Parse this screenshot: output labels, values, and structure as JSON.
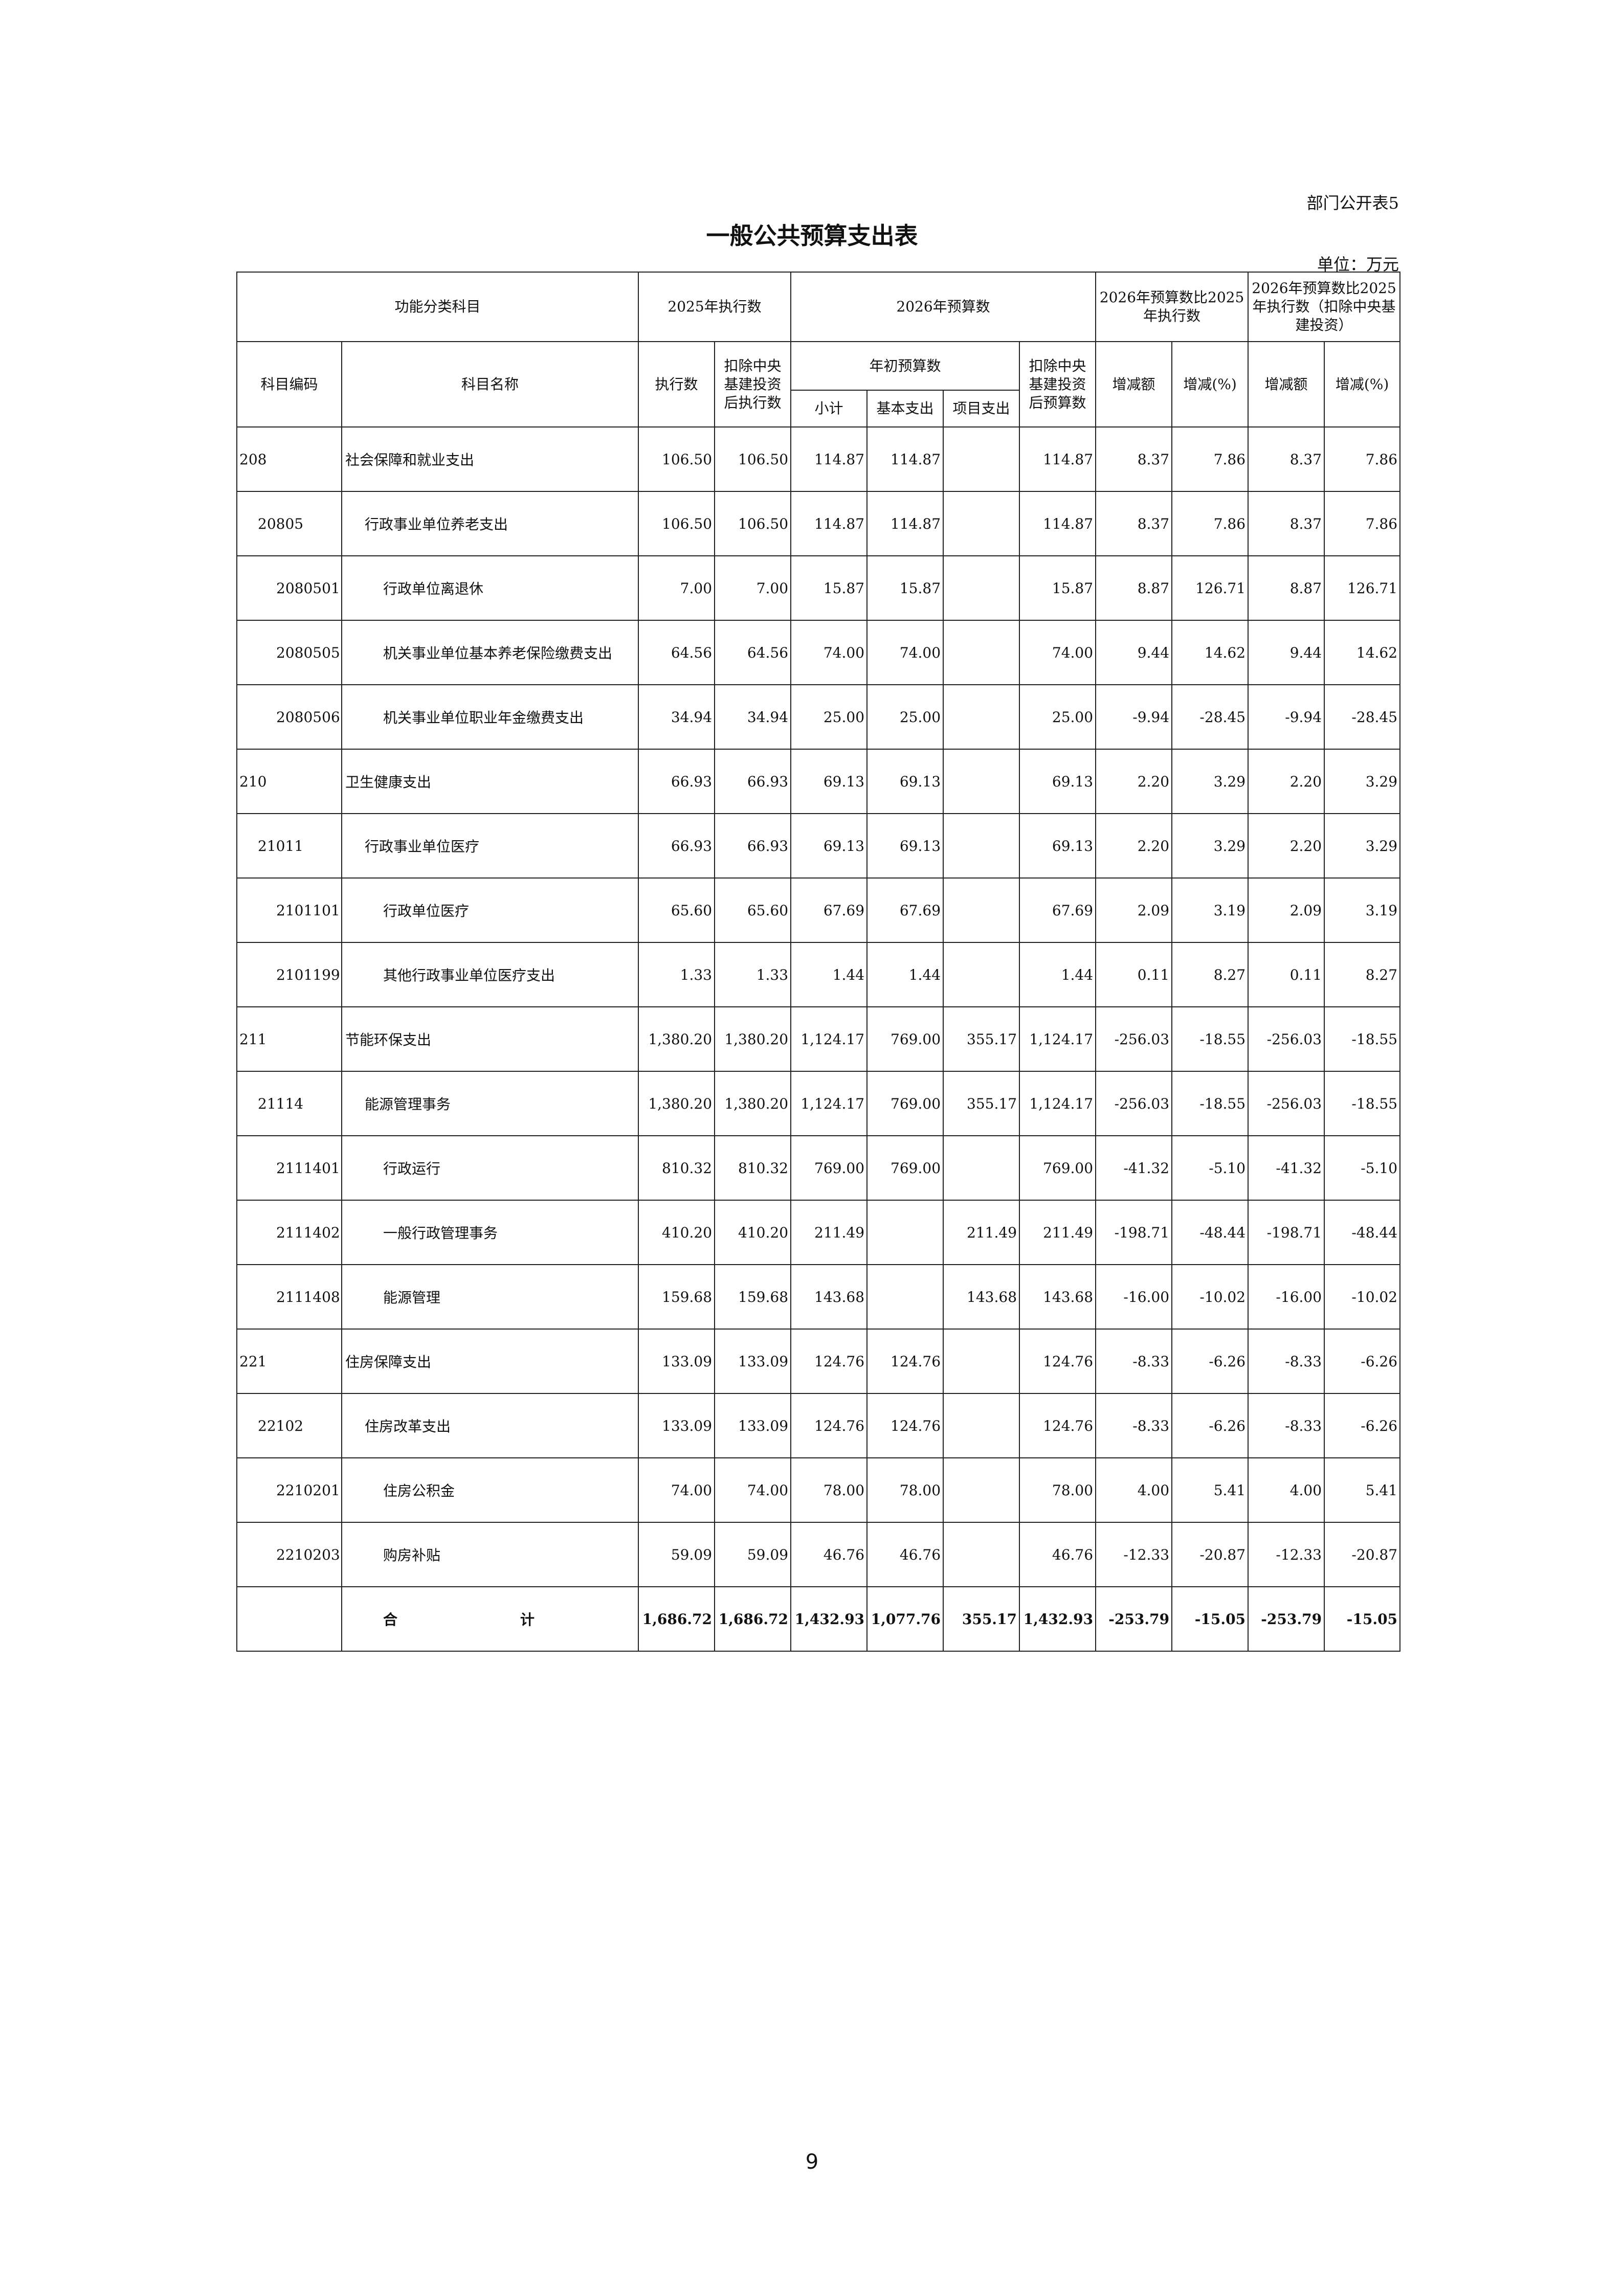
{
  "form_no": "部门公开表5",
  "title": "一般公共预算支出表",
  "unit": "单位：万元",
  "header": {
    "func_class": "功能分类科目",
    "exec_2025": "2025年执行数",
    "budget_2026": "2026年预算数",
    "cmp1": "2026年预算数比2025年执行数",
    "cmp2": "2026年预算数比2025年执行数（扣除中央基建投资）",
    "code": "科目编码",
    "name": "科目名称",
    "exec": "执行数",
    "exec_excl": "扣除中央基建投资后执行数",
    "initial_budget": "年初预算数",
    "subtotal": "小计",
    "basic": "基本支出",
    "project": "项目支出",
    "budget_excl": "扣除中央基建投资后预算数",
    "change_amt": "增减额",
    "change_pct": "增减(%)",
    "change_amt2": "增减额",
    "change_pct2": "增减(%)"
  },
  "rows": [
    {
      "level": 1,
      "code": "208",
      "name": "社会保障和就业支出",
      "v": [
        "106.50",
        "106.50",
        "114.87",
        "114.87",
        "",
        "114.87",
        "8.37",
        "7.86",
        "8.37",
        "7.86"
      ]
    },
    {
      "level": 2,
      "code": "20805",
      "name": "行政事业单位养老支出",
      "v": [
        "106.50",
        "106.50",
        "114.87",
        "114.87",
        "",
        "114.87",
        "8.37",
        "7.86",
        "8.37",
        "7.86"
      ]
    },
    {
      "level": 3,
      "code": "2080501",
      "name": "行政单位离退休",
      "v": [
        "7.00",
        "7.00",
        "15.87",
        "15.87",
        "",
        "15.87",
        "8.87",
        "126.71",
        "8.87",
        "126.71"
      ]
    },
    {
      "level": 3,
      "code": "2080505",
      "name": "机关事业单位基本养老保险缴费支出",
      "v": [
        "64.56",
        "64.56",
        "74.00",
        "74.00",
        "",
        "74.00",
        "9.44",
        "14.62",
        "9.44",
        "14.62"
      ]
    },
    {
      "level": 3,
      "code": "2080506",
      "name": "机关事业单位职业年金缴费支出",
      "v": [
        "34.94",
        "34.94",
        "25.00",
        "25.00",
        "",
        "25.00",
        "-9.94",
        "-28.45",
        "-9.94",
        "-28.45"
      ]
    },
    {
      "level": 1,
      "code": "210",
      "name": "卫生健康支出",
      "v": [
        "66.93",
        "66.93",
        "69.13",
        "69.13",
        "",
        "69.13",
        "2.20",
        "3.29",
        "2.20",
        "3.29"
      ]
    },
    {
      "level": 2,
      "code": "21011",
      "name": "行政事业单位医疗",
      "v": [
        "66.93",
        "66.93",
        "69.13",
        "69.13",
        "",
        "69.13",
        "2.20",
        "3.29",
        "2.20",
        "3.29"
      ]
    },
    {
      "level": 3,
      "code": "2101101",
      "name": "行政单位医疗",
      "v": [
        "65.60",
        "65.60",
        "67.69",
        "67.69",
        "",
        "67.69",
        "2.09",
        "3.19",
        "2.09",
        "3.19"
      ]
    },
    {
      "level": 3,
      "code": "2101199",
      "name": "其他行政事业单位医疗支出",
      "v": [
        "1.33",
        "1.33",
        "1.44",
        "1.44",
        "",
        "1.44",
        "0.11",
        "8.27",
        "0.11",
        "8.27"
      ]
    },
    {
      "level": 1,
      "code": "211",
      "name": "节能环保支出",
      "v": [
        "1,380.20",
        "1,380.20",
        "1,124.17",
        "769.00",
        "355.17",
        "1,124.17",
        "-256.03",
        "-18.55",
        "-256.03",
        "-18.55"
      ]
    },
    {
      "level": 2,
      "code": "21114",
      "name": "能源管理事务",
      "v": [
        "1,380.20",
        "1,380.20",
        "1,124.17",
        "769.00",
        "355.17",
        "1,124.17",
        "-256.03",
        "-18.55",
        "-256.03",
        "-18.55"
      ]
    },
    {
      "level": 3,
      "code": "2111401",
      "name": "行政运行",
      "v": [
        "810.32",
        "810.32",
        "769.00",
        "769.00",
        "",
        "769.00",
        "-41.32",
        "-5.10",
        "-41.32",
        "-5.10"
      ]
    },
    {
      "level": 3,
      "code": "2111402",
      "name": "一般行政管理事务",
      "v": [
        "410.20",
        "410.20",
        "211.49",
        "",
        "211.49",
        "211.49",
        "-198.71",
        "-48.44",
        "-198.71",
        "-48.44"
      ]
    },
    {
      "level": 3,
      "code": "2111408",
      "name": "能源管理",
      "v": [
        "159.68",
        "159.68",
        "143.68",
        "",
        "143.68",
        "143.68",
        "-16.00",
        "-10.02",
        "-16.00",
        "-10.02"
      ]
    },
    {
      "level": 1,
      "code": "221",
      "name": "住房保障支出",
      "v": [
        "133.09",
        "133.09",
        "124.76",
        "124.76",
        "",
        "124.76",
        "-8.33",
        "-6.26",
        "-8.33",
        "-6.26"
      ]
    },
    {
      "level": 2,
      "code": "22102",
      "name": "住房改革支出",
      "v": [
        "133.09",
        "133.09",
        "124.76",
        "124.76",
        "",
        "124.76",
        "-8.33",
        "-6.26",
        "-8.33",
        "-6.26"
      ]
    },
    {
      "level": 3,
      "code": "2210201",
      "name": "住房公积金",
      "v": [
        "74.00",
        "74.00",
        "78.00",
        "78.00",
        "",
        "78.00",
        "4.00",
        "5.41",
        "4.00",
        "5.41"
      ]
    },
    {
      "level": 3,
      "code": "2210203",
      "name": "购房补贴",
      "v": [
        "59.09",
        "59.09",
        "46.76",
        "46.76",
        "",
        "46.76",
        "-12.33",
        "-20.87",
        "-12.33",
        "-20.87"
      ]
    }
  ],
  "total": {
    "label": "合计",
    "v": [
      "1,686.72",
      "1,686.72",
      "1,432.93",
      "1,077.76",
      "355.17",
      "1,432.93",
      "-253.79",
      "-15.05",
      "-253.79",
      "-15.05"
    ]
  },
  "page_number": "9"
}
